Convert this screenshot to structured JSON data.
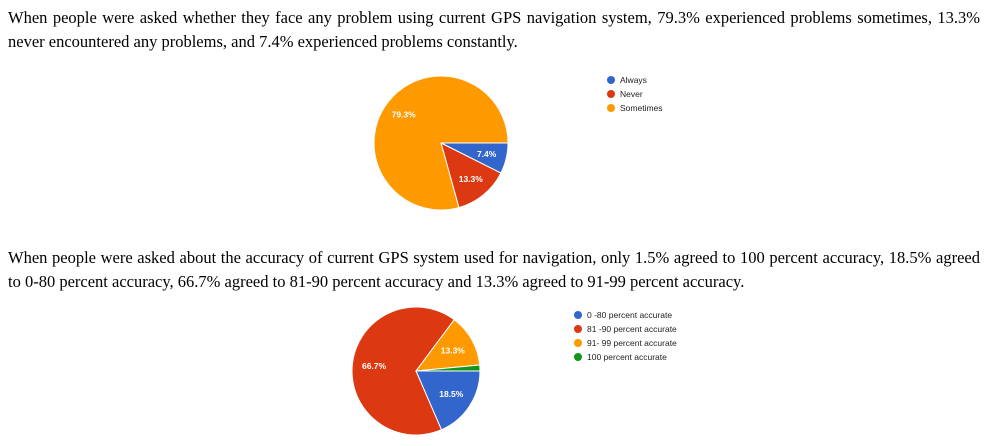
{
  "text": {
    "para1": "When people were asked whether they face any problem using current GPS navigation system, 79.3% experienced problems sometimes, 13.3% never encountered any problems, and 7.4% experienced problems constantly.",
    "para2": "When people were asked about the accuracy of current GPS system used for navigation, only 1.5% agreed to 100 percent accuracy, 18.5% agreed to 0-80 percent accuracy, 66.7% agreed to 81-90 percent accuracy and 13.3%  agreed to 91-99 percent accuracy."
  },
  "chart_data": [
    {
      "type": "pie",
      "legend_position": "right",
      "slices": [
        {
          "label": "Always",
          "value": 7.4,
          "data_label": "7.4%",
          "color": "#3366cc"
        },
        {
          "label": "Never",
          "value": 13.3,
          "data_label": "13.3%",
          "color": "#dc3912"
        },
        {
          "label": "Sometimes",
          "value": 79.3,
          "data_label": "79.3%",
          "color": "#ff9900"
        }
      ]
    },
    {
      "type": "pie",
      "legend_position": "right",
      "slices": [
        {
          "label": "0 -80 percent accurate",
          "value": 18.5,
          "data_label": "18.5%",
          "color": "#3366cc"
        },
        {
          "label": "81 -90 percent accurate",
          "value": 66.7,
          "data_label": "66.7%",
          "color": "#dc3912"
        },
        {
          "label": "91- 99 percent accurate",
          "value": 13.3,
          "data_label": "13.3%",
          "color": "#ff9900"
        },
        {
          "label": "100 percent accurate",
          "value": 1.5,
          "data_label": "",
          "color": "#109618"
        }
      ]
    }
  ]
}
